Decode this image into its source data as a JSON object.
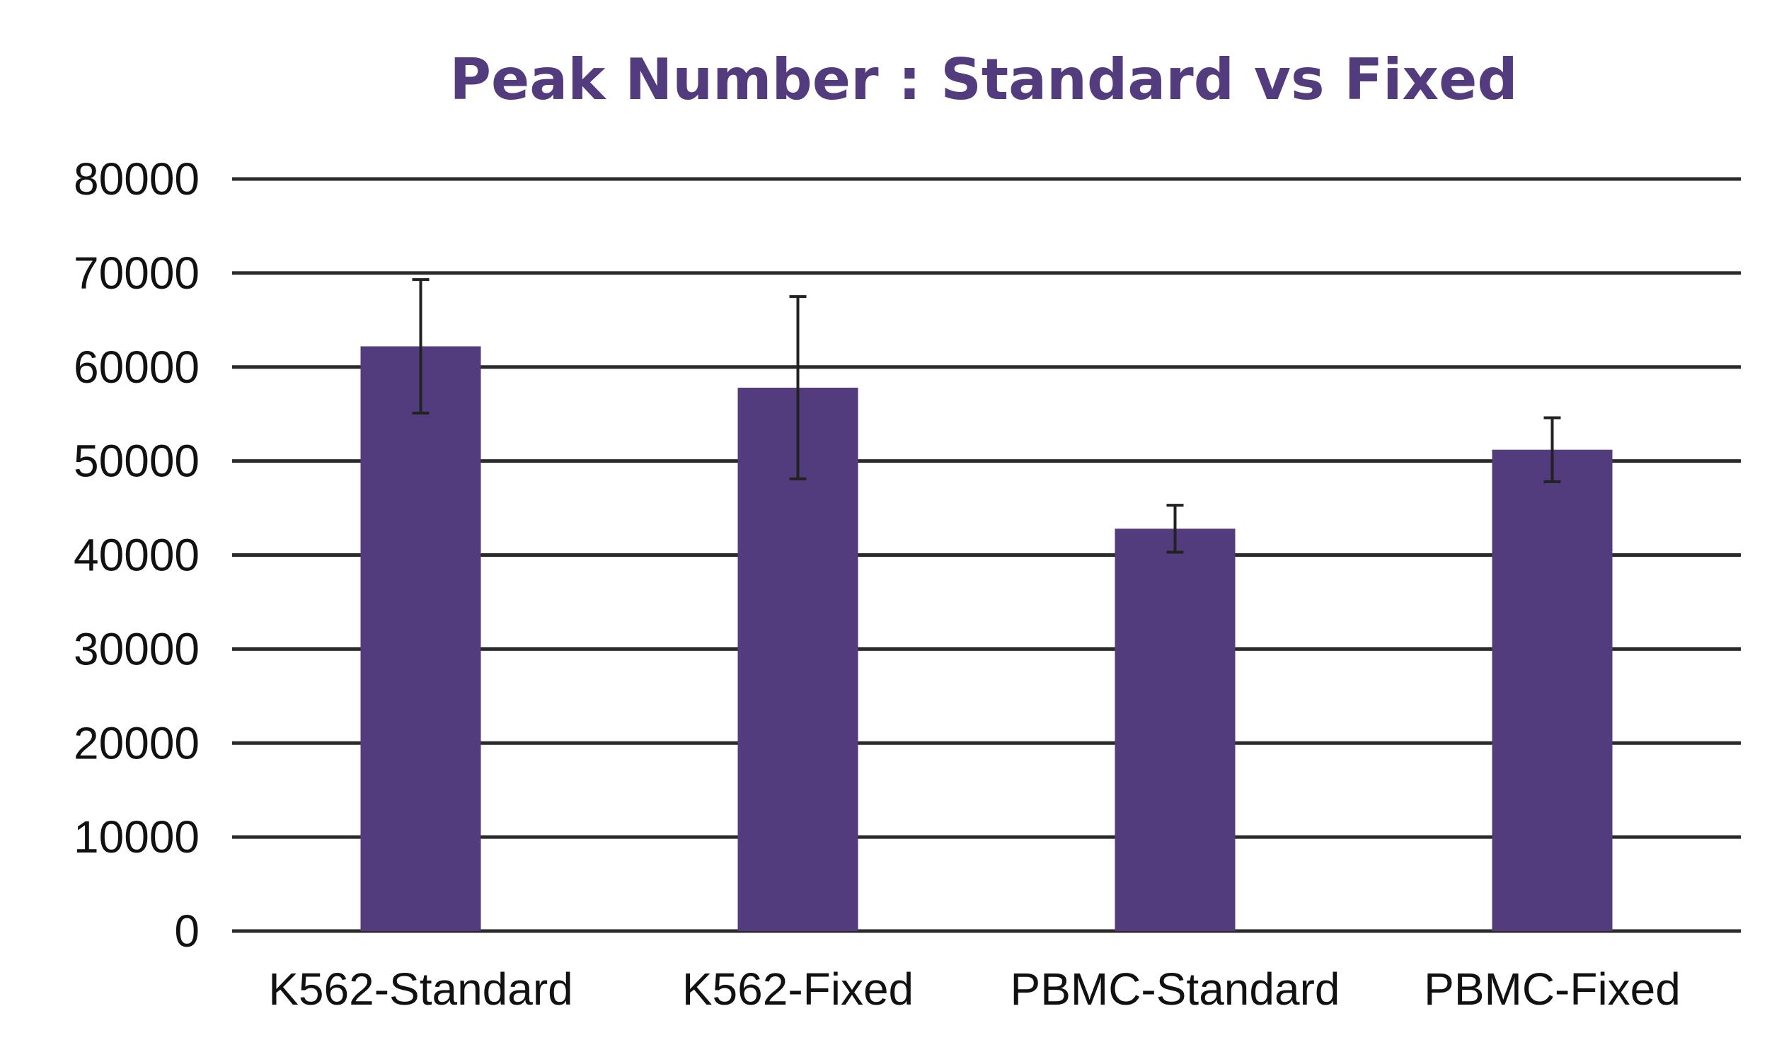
{
  "chart_data": {
    "type": "bar",
    "title": "Peak Number : Standard vs Fixed",
    "categories": [
      "K562-Standard",
      "K562-Fixed",
      "PBMC-Standard",
      "PBMC-Fixed"
    ],
    "series": [
      {
        "values": [
          62200,
          57800,
          42800,
          51200
        ],
        "error": [
          7100,
          9700,
          2500,
          3400
        ]
      }
    ],
    "ylim": [
      0,
      80000
    ],
    "yticks": [
      "0",
      "10000",
      "20000",
      "30000",
      "40000",
      "50000",
      "60000",
      "70000",
      "80000"
    ],
    "grid": true,
    "legend": "none",
    "colors": {
      "bar": "#533c7d",
      "title": "#533c7d",
      "grid": "#2a2a2a",
      "error_bar": "#222222",
      "text": "#111111"
    }
  }
}
